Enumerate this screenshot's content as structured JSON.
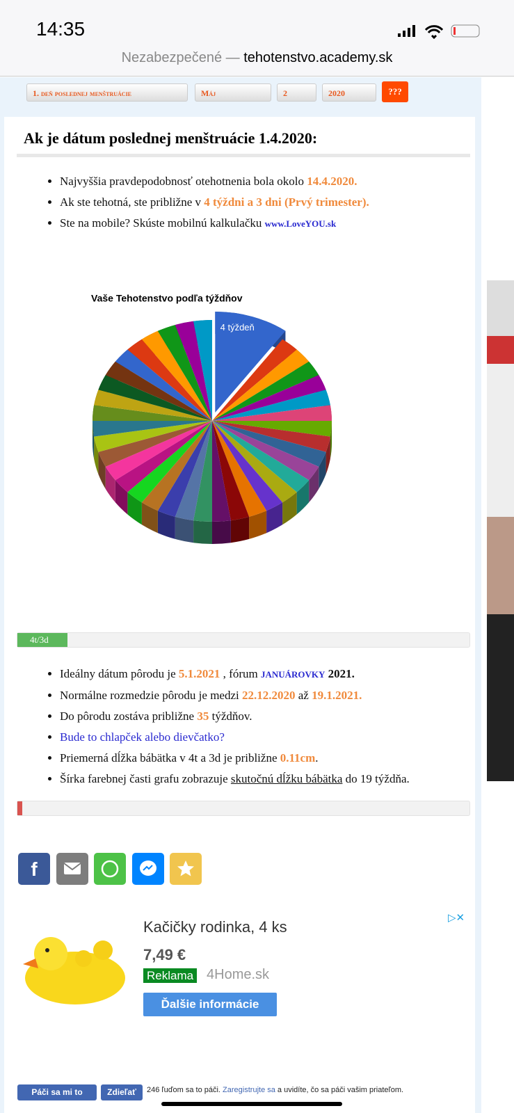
{
  "status": {
    "time": "14:35"
  },
  "browser": {
    "insecure": "Nezabezpečené —",
    "domain": "tehotenstvo.academy.sk"
  },
  "selectors": {
    "items": [
      "1. deň poslednej menštruácie",
      "Máj",
      "2",
      "2020"
    ],
    "button": "???"
  },
  "heading": "Ak je dátum poslednej menštruácie 1.4.2020:",
  "list1": [
    [
      "Najvyššia pravdepodobnosť otehotnenia bola okolo ",
      "14.4.2020."
    ],
    [
      "Ak ste tehotná, ste približne v ",
      "4 týždni a 3 dni (Prvý trimester)."
    ],
    [
      "Ste na mobile? Skúste mobilnú kalkulačku ",
      "www.LoveYOU.sk"
    ]
  ],
  "pie_chart": {
    "type": "pie",
    "title": "Vaše Tehotenstvo podľa týždňov",
    "categories": [
      "4 týždeň",
      null,
      null,
      null,
      null,
      null,
      null,
      null,
      null,
      null,
      null,
      null,
      null,
      null,
      null,
      null,
      null,
      null,
      null,
      null,
      null,
      null,
      null,
      null,
      null,
      null,
      null,
      null,
      null,
      null,
      null,
      null,
      null,
      null,
      null,
      null,
      null
    ],
    "values": [
      4,
      1,
      1,
      1,
      1,
      1,
      1,
      1,
      1,
      1,
      1,
      1,
      1,
      1,
      1,
      1,
      1,
      1,
      1,
      1,
      1,
      1,
      1,
      1,
      1,
      1,
      1,
      1,
      1,
      1,
      1,
      1,
      1,
      1,
      1,
      1,
      1
    ],
    "colors": [
      "#3366cc",
      "#dc3912",
      "#ff9900",
      "#109618",
      "#990099",
      "#0099c6",
      "#dd4477",
      "#66aa00",
      "#b82e2e",
      "#316395",
      "#994499",
      "#22aa99",
      "#aaaa11",
      "#6633cc",
      "#e67300",
      "#8b0707",
      "#651067",
      "#329262",
      "#5574a6",
      "#3b3eac",
      "#b77322",
      "#16d620",
      "#b91383",
      "#f4359e",
      "#9c5935",
      "#a9c413",
      "#2a778d",
      "#668d1c",
      "#bea413",
      "#0c5922",
      "#743411",
      "#3366cc",
      "#dc3912",
      "#ff9900",
      "#109618",
      "#990099",
      "#0099c6"
    ],
    "exploded": 0
  },
  "progress1": {
    "label": "4t/3d",
    "value": 11
  },
  "list2": [
    [
      "Ideálny dátum pôrodu je ",
      "5.1.2021",
      " , fórum ",
      "JANUÁROVKY",
      " 2021."
    ],
    [
      "Normálne rozmedzie pôrodu je medzi ",
      "22.12.2020",
      " až ",
      "19.1.2021."
    ],
    [
      "Do pôrodu zostáva približne ",
      "35",
      " týždňov."
    ],
    [
      "Bude to chlapček alebo dievčatko?"
    ],
    [
      "Priemerná dĺžka bábätka v 4t a 3d je približne ",
      "0.11cm",
      "."
    ],
    [
      "Šírka farebnej časti grafu zobrazuje ",
      "skutočnú dĺžku bábätka",
      " do 19 týždňa."
    ]
  ],
  "progress2": {
    "value": 1
  },
  "ad": {
    "title": "Kačičky rodinka, 4 ks",
    "price": "7,49 €",
    "badge": "Reklama",
    "shop": "4Home.sk",
    "button": "Ďalšie informácie"
  },
  "facebook": {
    "like": "Páči sa mi to",
    "share": "Zdieľať",
    "count": "246 ľuďom sa to páči.",
    "link": "Zaregistrujte sa",
    "rest": "a uvidíte, čo sa páči vašim priateľom."
  }
}
